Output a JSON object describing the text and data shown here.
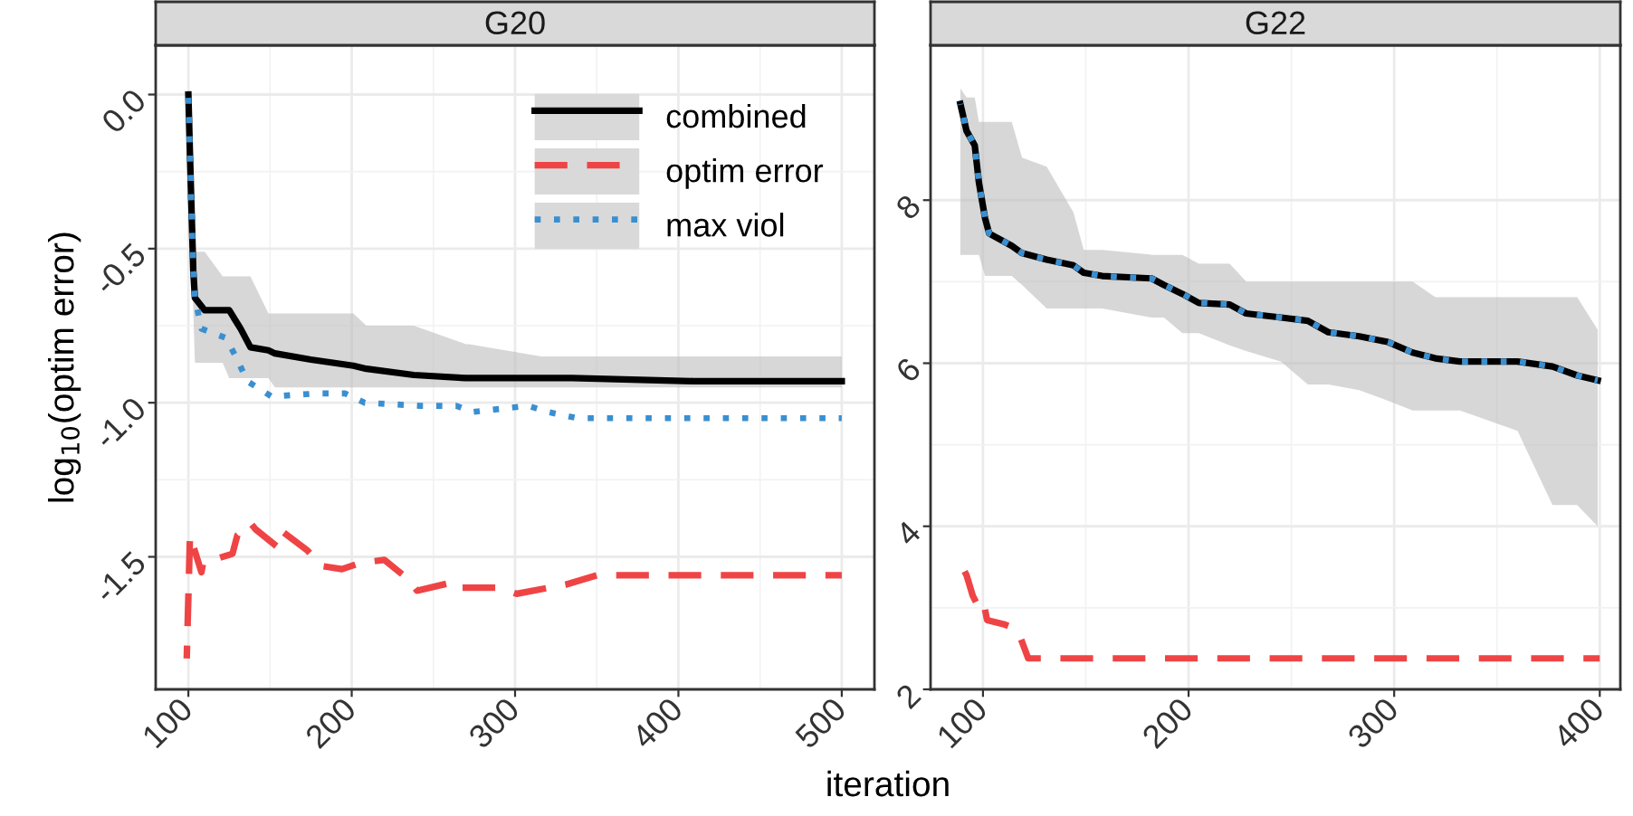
{
  "chart_data": [
    {
      "type": "line",
      "title": "G20",
      "xlabel": "iteration",
      "ylabel": "log$_{10}$(optim error)",
      "xlim": [
        80,
        520
      ],
      "xticks": [
        100,
        200,
        300,
        400,
        500
      ],
      "ylim": [
        -1.93,
        0.16
      ],
      "yticks": [
        {
          "value": 0,
          "label": "0.0"
        },
        {
          "value": -0.5,
          "label": "-0.5"
        },
        {
          "value": -1.0,
          "label": "-1.0"
        },
        {
          "value": -1.5,
          "label": "-1.5"
        }
      ],
      "grid": true,
      "legend": "top right",
      "tick_labels": "xy",
      "series": [
        {
          "name": "combined",
          "color": "#000000",
          "line_style": "solid",
          "x": [
            100,
            101,
            103,
            104,
            110,
            121,
            125,
            132,
            138,
            149,
            153,
            175,
            201,
            209,
            238,
            270,
            272,
            316,
            335,
            409,
            500
          ],
          "values": [
            0.0,
            -0.2,
            -0.57,
            -0.66,
            -0.7,
            -0.7,
            -0.7,
            -0.76,
            -0.82,
            -0.83,
            -0.84,
            -0.86,
            -0.88,
            -0.89,
            -0.91,
            -0.92,
            -0.92,
            -0.92,
            -0.92,
            -0.93,
            -0.93
          ],
          "upper": [
            0.02,
            -0.15,
            -0.5,
            -0.51,
            -0.51,
            -0.59,
            -0.59,
            -0.59,
            -0.59,
            -0.71,
            -0.71,
            -0.71,
            -0.71,
            -0.75,
            -0.75,
            -0.81,
            -0.81,
            -0.85,
            -0.85,
            -0.85,
            -0.85
          ],
          "lower": [
            -0.02,
            -0.3,
            -0.7,
            -0.87,
            -0.87,
            -0.87,
            -0.92,
            -0.92,
            -0.92,
            -0.92,
            -0.95,
            -0.95,
            -0.95,
            -0.95,
            -0.95,
            -0.95,
            -0.95,
            -0.95,
            -0.95,
            -0.95,
            -0.95
          ]
        },
        {
          "name": "optim error",
          "color": "#ef4445",
          "line_style": "dashed",
          "x": [
            99,
            101,
            108,
            109,
            127,
            130,
            138,
            141,
            155,
            158,
            173,
            182,
            194,
            205,
            220,
            234,
            240,
            264,
            267,
            290,
            301,
            331,
            350,
            500
          ],
          "values": [
            -1.83,
            -1.43,
            -1.55,
            -1.52,
            -1.49,
            -1.43,
            -1.39,
            -1.41,
            -1.47,
            -1.42,
            -1.48,
            -1.53,
            -1.54,
            -1.52,
            -1.51,
            -1.57,
            -1.61,
            -1.58,
            -1.6,
            -1.6,
            -1.62,
            -1.59,
            -1.56,
            -1.56
          ]
        },
        {
          "name": "max viol",
          "color": "#3a8fd0",
          "line_style": "dotted",
          "x": [
            100,
            101,
            103,
            104,
            108,
            123,
            130,
            136,
            151,
            178,
            196,
            208,
            242,
            264,
            274,
            308,
            320,
            338,
            500
          ],
          "values": [
            0.0,
            -0.2,
            -0.57,
            -0.66,
            -0.76,
            -0.79,
            -0.86,
            -0.93,
            -0.98,
            -0.97,
            -0.97,
            -1.0,
            -1.01,
            -1.01,
            -1.03,
            -1.01,
            -1.03,
            -1.05,
            -1.05
          ]
        }
      ]
    },
    {
      "type": "line",
      "title": "G22",
      "xlim": [
        74.5,
        410
      ],
      "xticks": [
        100,
        200,
        300,
        400
      ],
      "ylim": [
        2,
        9.9
      ],
      "yticks": [
        2,
        4,
        6,
        8
      ],
      "grid": true,
      "tick_labels": "xy",
      "series": [
        {
          "color": "#000000",
          "line_style": "solid",
          "x": [
            89,
            92,
            96,
            98,
            101,
            103,
            114,
            119,
            131,
            144,
            149,
            158,
            182,
            188,
            197,
            205,
            220,
            228,
            245,
            258,
            268,
            283,
            297,
            309,
            320,
            332,
            360,
            377,
            389,
            399
          ],
          "values": [
            9.18,
            8.85,
            8.67,
            8.22,
            7.78,
            7.59,
            7.44,
            7.35,
            7.27,
            7.2,
            7.11,
            7.07,
            7.04,
            6.96,
            6.85,
            6.74,
            6.72,
            6.61,
            6.56,
            6.52,
            6.38,
            6.33,
            6.26,
            6.13,
            6.06,
            6.02,
            6.02,
            5.96,
            5.85,
            5.79
          ],
          "upper": [
            9.37,
            9.26,
            9.26,
            8.96,
            8.96,
            8.96,
            8.96,
            8.52,
            8.41,
            7.85,
            7.39,
            7.39,
            7.33,
            7.33,
            7.33,
            7.22,
            7.22,
            7.0,
            7.0,
            7.0,
            7.0,
            7.0,
            7.0,
            7.0,
            6.81,
            6.81,
            6.81,
            6.81,
            6.81,
            6.41
          ],
          "lower": [
            7.33,
            7.33,
            7.33,
            7.33,
            7.07,
            7.07,
            7.07,
            6.96,
            6.67,
            6.67,
            6.67,
            6.67,
            6.56,
            6.56,
            6.37,
            6.37,
            6.22,
            6.15,
            6.02,
            5.74,
            5.74,
            5.67,
            5.54,
            5.42,
            5.42,
            5.42,
            5.17,
            4.26,
            4.26,
            4.0
          ]
        },
        {
          "color": "#ef4445",
          "line_style": "dashed",
          "x": [
            89,
            92,
            95,
            97,
            100,
            102,
            110,
            115,
            118,
            122,
            400
          ],
          "values": [
            3.55,
            3.4,
            3.15,
            3.05,
            3.1,
            2.85,
            2.8,
            2.75,
            2.65,
            2.38,
            2.38
          ]
        },
        {
          "color": "#3a8fd0",
          "line_style": "dotted",
          "x": [
            89,
            92,
            96,
            98,
            101,
            103,
            114,
            119,
            131,
            144,
            149,
            158,
            182,
            188,
            197,
            205,
            220,
            228,
            245,
            258,
            268,
            283,
            297,
            309,
            320,
            332,
            360,
            377,
            389,
            399
          ],
          "values": [
            9.18,
            8.85,
            8.67,
            8.22,
            7.78,
            7.59,
            7.44,
            7.35,
            7.27,
            7.2,
            7.11,
            7.07,
            7.04,
            6.96,
            6.85,
            6.74,
            6.72,
            6.61,
            6.56,
            6.52,
            6.38,
            6.33,
            6.26,
            6.13,
            6.06,
            6.02,
            6.02,
            5.96,
            5.85,
            5.79
          ]
        }
      ]
    }
  ]
}
